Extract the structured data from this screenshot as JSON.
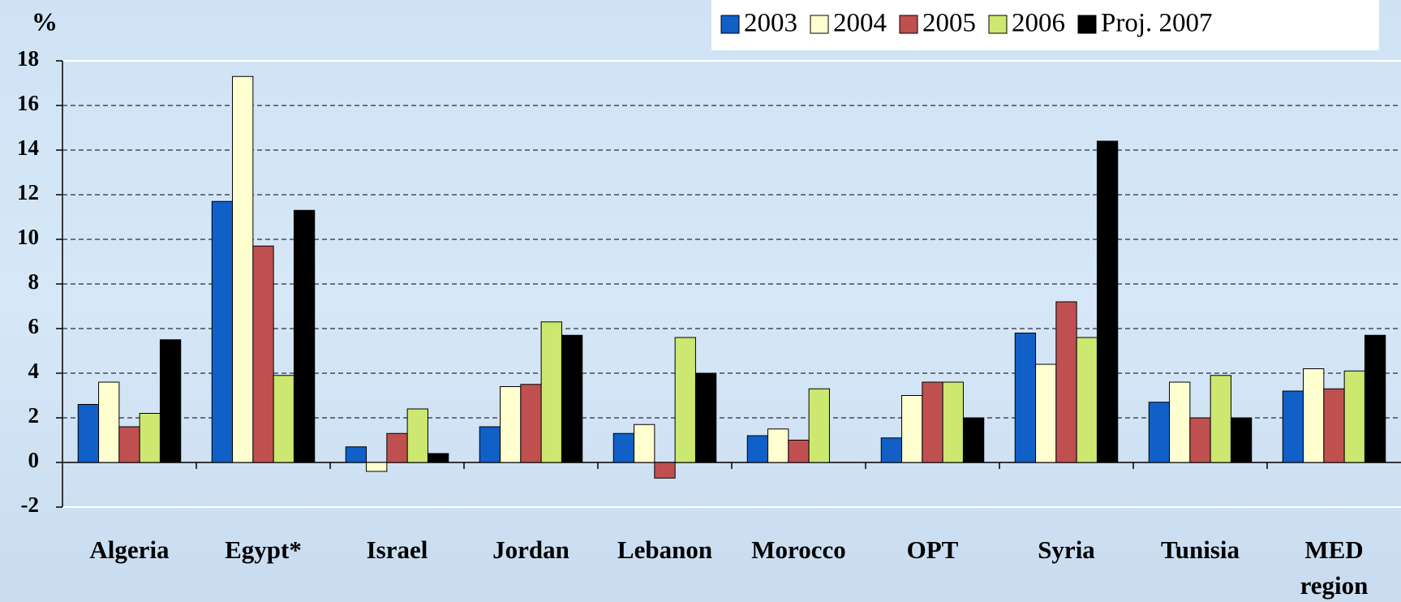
{
  "chart_data": {
    "type": "bar",
    "y_label": "%",
    "categories": [
      "Algeria",
      "Egypt*",
      "Israel",
      "Jordan",
      "Lebanon",
      "Morocco",
      "OPT",
      "Syria",
      "Tunisia",
      "MED region"
    ],
    "series": [
      {
        "name": "2003",
        "color": "#1060c8",
        "values": [
          2.6,
          11.7,
          0.7,
          1.6,
          1.3,
          1.2,
          1.1,
          5.8,
          2.7,
          3.2
        ]
      },
      {
        "name": "2004",
        "color": "#ffffd0",
        "values": [
          3.6,
          17.3,
          -0.4,
          3.4,
          1.7,
          1.5,
          3.0,
          4.4,
          3.6,
          4.2
        ]
      },
      {
        "name": "2005",
        "color": "#c05050",
        "values": [
          1.6,
          9.7,
          1.3,
          3.5,
          -0.7,
          1.0,
          3.6,
          7.2,
          2.0,
          3.3
        ]
      },
      {
        "name": "2006",
        "color": "#cce870",
        "values": [
          2.2,
          3.9,
          2.4,
          6.3,
          5.6,
          3.3,
          3.6,
          5.6,
          3.9,
          4.1
        ]
      },
      {
        "name": "Proj. 2007",
        "color": "#000000",
        "values": [
          5.5,
          11.3,
          0.4,
          5.7,
          4.0,
          null,
          2.0,
          14.4,
          2.0,
          5.7
        ]
      }
    ],
    "ylim": [
      -2,
      18
    ],
    "yticks": [
      -2,
      0,
      2,
      4,
      6,
      8,
      10,
      12,
      14,
      16,
      18
    ],
    "grid": true,
    "legend": "top-right"
  }
}
